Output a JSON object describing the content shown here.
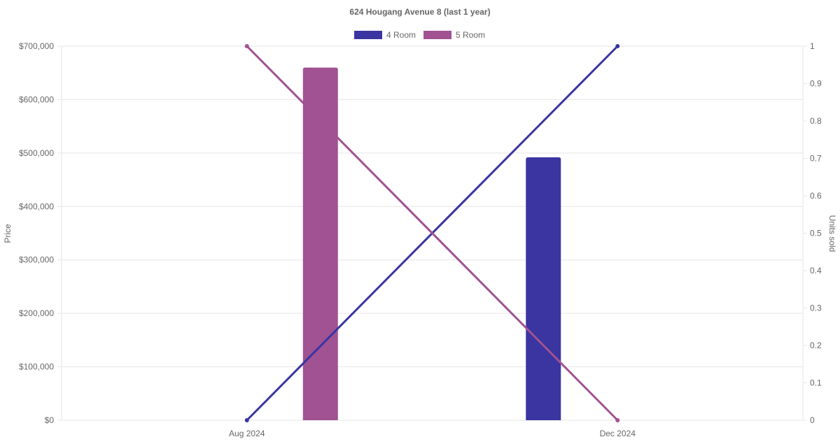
{
  "chart_data": {
    "type": "bar",
    "title": "624 Hougang Avenue 8 (last 1 year)",
    "categories": [
      "Aug 2024",
      "Dec 2024"
    ],
    "ylabel": "Price",
    "y2label": "Units sold",
    "ylim": [
      0,
      700000
    ],
    "y2lim": [
      0,
      1
    ],
    "yticks": [
      "$0",
      "$100,000",
      "$200,000",
      "$300,000",
      "$400,000",
      "$500,000",
      "$600,000",
      "$700,000"
    ],
    "y2ticks": [
      "0",
      "0.1",
      "0.2",
      "0.3",
      "0.4",
      "0.5",
      "0.6",
      "0.7",
      "0.8",
      "0.9",
      "1"
    ],
    "grid": true,
    "legend": "top",
    "series": [
      {
        "name": "4 Room",
        "color": "#3a35a0",
        "price": [
          null,
          492000
        ],
        "units_sold": [
          0,
          1
        ]
      },
      {
        "name": "5 Room",
        "color": "#a05292",
        "price": [
          660000,
          null
        ],
        "units_sold": [
          1,
          0
        ]
      }
    ]
  }
}
